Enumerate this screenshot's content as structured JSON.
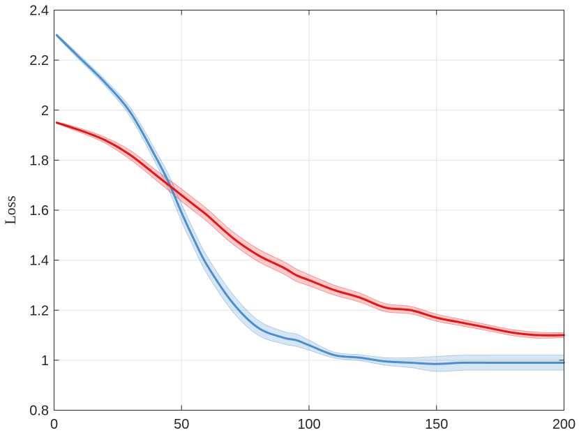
{
  "chart_data": {
    "type": "line",
    "title": "",
    "xlabel": "",
    "ylabel": "Loss",
    "xlim": [
      0,
      200
    ],
    "ylim": [
      0.8,
      2.4
    ],
    "xticks": [
      0,
      50,
      100,
      150,
      200
    ],
    "yticks": [
      0.8,
      1,
      1.2,
      1.4,
      1.6,
      1.8,
      2,
      2.2,
      2.4
    ],
    "xtick_labels": [
      "0",
      "50",
      "100",
      "150",
      "200"
    ],
    "ytick_labels": [
      "0.8",
      "1",
      "1.2",
      "1.4",
      "1.6",
      "1.8",
      "2",
      "2.2",
      "2.4"
    ],
    "grid": true,
    "legend": "none",
    "x": [
      1,
      10,
      20,
      30,
      40,
      45,
      50,
      55,
      60,
      70,
      80,
      90,
      95,
      100,
      110,
      120,
      130,
      140,
      150,
      160,
      170,
      180,
      190,
      200
    ],
    "series": [
      {
        "color": "#4a8fd0",
        "values": [
          2.3,
          2.21,
          2.11,
          1.99,
          1.81,
          1.71,
          1.59,
          1.48,
          1.38,
          1.23,
          1.13,
          1.09,
          1.08,
          1.06,
          1.02,
          1.01,
          0.995,
          0.99,
          0.985,
          0.99,
          0.99,
          0.99,
          0.99,
          0.99
        ],
        "band": [
          0.005,
          0.01,
          0.012,
          0.018,
          0.025,
          0.03,
          0.035,
          0.035,
          0.035,
          0.035,
          0.03,
          0.025,
          0.025,
          0.02,
          0.012,
          0.012,
          0.015,
          0.02,
          0.03,
          0.03,
          0.03,
          0.03,
          0.03,
          0.03
        ]
      },
      {
        "color": "#ee1111",
        "values": [
          1.95,
          1.92,
          1.88,
          1.82,
          1.74,
          1.7,
          1.66,
          1.62,
          1.58,
          1.49,
          1.42,
          1.37,
          1.34,
          1.32,
          1.28,
          1.25,
          1.21,
          1.2,
          1.17,
          1.15,
          1.13,
          1.11,
          1.1,
          1.1
        ],
        "band": [
          0.003,
          0.008,
          0.012,
          0.018,
          0.02,
          0.022,
          0.025,
          0.025,
          0.025,
          0.025,
          0.025,
          0.025,
          0.025,
          0.022,
          0.02,
          0.018,
          0.016,
          0.015,
          0.014,
          0.013,
          0.012,
          0.012,
          0.012,
          0.01
        ]
      }
    ]
  }
}
